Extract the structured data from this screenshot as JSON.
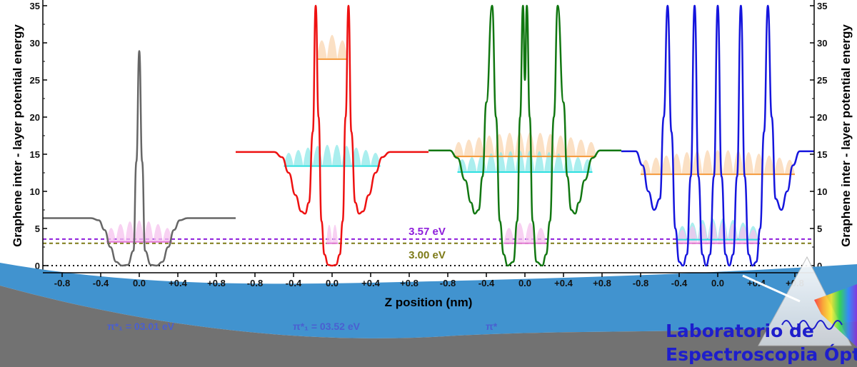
{
  "chart_data": {
    "type": "line",
    "ylabel": "Graphene inter - layer potential energy",
    "ylabel_right": "Graphene inter - layer potential energy",
    "xlabel": "Z position (nm)",
    "ylim": [
      0,
      35
    ],
    "yticks": [
      0,
      5,
      10,
      15,
      20,
      25,
      30,
      35
    ],
    "ytick_labels": [
      "0",
      "5",
      "10",
      "15",
      "20",
      "25",
      "30",
      "35"
    ],
    "grid": false,
    "panels": [
      {
        "name": "",
        "color": "#666666",
        "x_range": [
          -1.0,
          1.0
        ],
        "xticks": [
          -0.8,
          -0.4,
          0.0,
          0.4,
          0.8
        ],
        "xtick_labels": [
          "-0.8",
          "-0.4",
          "0.0",
          "+0.4",
          "+0.8"
        ],
        "curve": {
          "x": [
            -1.0,
            -0.5,
            -0.42,
            -0.36,
            -0.3,
            -0.24,
            -0.18,
            -0.12,
            -0.06,
            -0.03,
            0.0,
            0.03,
            0.06,
            0.12,
            0.18,
            0.24,
            0.3,
            0.36,
            0.42,
            0.5,
            1.0
          ],
          "y": [
            6.4,
            6.4,
            6.1,
            4.8,
            2.5,
            0.5,
            0.0,
            0.1,
            2.0,
            14.0,
            28.9,
            14.0,
            2.0,
            0.1,
            0.0,
            0.5,
            2.5,
            4.8,
            6.1,
            6.4,
            6.4
          ]
        },
        "levels": [
          {
            "energy": 3.2,
            "x_range": [
              -0.34,
              0.34
            ],
            "color": "#e37bd8",
            "fill": "#f5c2ee"
          }
        ]
      },
      {
        "name": "",
        "color": "#ee1111",
        "x_range": [
          -1.0,
          1.0
        ],
        "xticks": [
          -0.8,
          -0.4,
          0.0,
          0.4,
          0.8
        ],
        "xtick_labels": [
          "-0.8",
          "-0.4",
          "0.0",
          "+0.4",
          "+0.8"
        ],
        "curve": {
          "x": [
            -1.0,
            -0.6,
            -0.52,
            -0.45,
            -0.38,
            -0.32,
            -0.28,
            -0.24,
            -0.2,
            -0.17,
            -0.14,
            -0.11,
            -0.08,
            -0.04,
            0.0,
            0.04,
            0.08,
            0.11,
            0.14,
            0.17,
            0.2,
            0.24,
            0.28,
            0.32,
            0.38,
            0.45,
            0.52,
            0.6,
            1.0
          ],
          "y": [
            15.3,
            15.3,
            14.6,
            12.5,
            9.5,
            7.3,
            7.0,
            8.5,
            18.0,
            35.0,
            20.0,
            6.0,
            1.5,
            0.1,
            0.0,
            0.1,
            1.5,
            6.0,
            20.0,
            35.0,
            18.0,
            8.5,
            7.0,
            7.3,
            9.5,
            12.5,
            14.6,
            15.3,
            15.3
          ]
        },
        "levels": [
          {
            "energy": 27.8,
            "x_range": [
              -0.16,
              0.16
            ],
            "color": "#f59a3b",
            "fill": "#f9d6b0"
          },
          {
            "energy": 13.4,
            "x_range": [
              -0.5,
              0.5
            ],
            "color": "#2ee0e0",
            "fill": "#8de8e8"
          },
          {
            "energy": 3.0,
            "x_range": [
              -0.06,
              0.06
            ],
            "color": "#e37bd8",
            "fill": "#f5c2ee"
          }
        ]
      },
      {
        "name": "",
        "color": "#117711",
        "x_range": [
          -1.0,
          1.0
        ],
        "xticks": [
          -0.8,
          -0.4,
          0.0,
          0.4,
          0.8
        ],
        "xtick_labels": [
          "-0.8",
          "-0.4",
          "0.0",
          "+0.4",
          "+0.8"
        ],
        "curve": {
          "x": [
            -1.0,
            -0.78,
            -0.7,
            -0.62,
            -0.56,
            -0.52,
            -0.48,
            -0.44,
            -0.4,
            -0.34,
            -0.3,
            -0.26,
            -0.22,
            -0.18,
            -0.12,
            -0.08,
            -0.05,
            -0.02,
            0.0,
            0.02,
            0.05,
            0.08,
            0.12,
            0.18,
            0.22,
            0.26,
            0.3,
            0.34,
            0.4,
            0.44,
            0.48,
            0.52,
            0.56,
            0.62,
            0.7,
            0.78,
            1.0
          ],
          "y": [
            15.5,
            15.5,
            14.5,
            11.5,
            8.5,
            7.0,
            7.5,
            12.0,
            22.0,
            35.0,
            20.0,
            6.0,
            1.5,
            0.0,
            0.5,
            6.0,
            20.0,
            35.0,
            25.0,
            35.0,
            20.0,
            6.0,
            0.5,
            0.0,
            1.5,
            6.0,
            20.0,
            35.0,
            22.0,
            12.0,
            7.5,
            7.0,
            8.5,
            11.5,
            14.5,
            15.5,
            15.5
          ]
        },
        "levels": [
          {
            "energy": 14.7,
            "x_range": [
              -0.74,
              0.74
            ],
            "color": "#f59a3b",
            "fill": "#f9d6b0"
          },
          {
            "energy": 12.6,
            "x_range": [
              -0.7,
              0.7
            ],
            "color": "#2ee0e0",
            "fill": "#8de8e8"
          },
          {
            "energy": 3.0,
            "x_range": [
              -0.22,
              0.22
            ],
            "color": "#e37bd8",
            "fill": "#f5c2ee"
          }
        ]
      },
      {
        "name": "",
        "color": "#1515dd",
        "x_range": [
          -1.0,
          1.0
        ],
        "xticks": [
          -0.8,
          -0.4,
          0.0,
          0.4,
          0.8
        ],
        "xtick_labels": [
          "-0.8",
          "-0.4",
          "0.0",
          "+0.4",
          "+0.8"
        ],
        "curve": {
          "x": [
            -1.0,
            -0.85,
            -0.78,
            -0.72,
            -0.66,
            -0.6,
            -0.56,
            -0.52,
            -0.48,
            -0.44,
            -0.4,
            -0.36,
            -0.32,
            -0.28,
            -0.24,
            -0.2,
            -0.16,
            -0.12,
            -0.08,
            -0.04,
            0.0,
            0.04,
            0.08,
            0.12,
            0.16,
            0.2,
            0.24,
            0.28,
            0.32,
            0.36,
            0.4,
            0.44,
            0.48,
            0.52,
            0.56,
            0.6,
            0.66,
            0.72,
            0.78,
            0.85,
            1.0
          ],
          "y": [
            15.4,
            15.4,
            13.5,
            10.0,
            7.5,
            9.0,
            20.0,
            35.0,
            18.0,
            5.0,
            0.5,
            0.0,
            1.5,
            12.0,
            35.0,
            12.0,
            1.5,
            0.0,
            1.5,
            12.0,
            35.0,
            12.0,
            1.5,
            0.0,
            1.5,
            12.0,
            35.0,
            12.0,
            1.5,
            0.0,
            0.5,
            5.0,
            18.0,
            35.0,
            20.0,
            9.0,
            7.5,
            10.0,
            13.5,
            15.4,
            15.4
          ]
        },
        "levels": [
          {
            "energy": 12.3,
            "x_range": [
              -0.8,
              0.8
            ],
            "color": "#f59a3b",
            "fill": "#f9d6b0"
          },
          {
            "energy": 3.5,
            "x_range": [
              -0.42,
              0.42
            ],
            "color": "#2ee0e0",
            "fill": "#8de8e8"
          },
          {
            "energy": 3.0,
            "x_range": [
              -0.42,
              0.42
            ],
            "color": "#e37bd8",
            "fill": "#f5c2ee"
          }
        ]
      }
    ],
    "reference_lines": [
      {
        "value": 3.57,
        "label": "3.57 eV",
        "color": "#8e1ddb",
        "style": "dashed"
      },
      {
        "value": 3.0,
        "label": "3.00 eV",
        "color": "#7d7a17",
        "style": "dashed"
      },
      {
        "value": 0.0,
        "label": "",
        "color": "#000000",
        "style": "dotted"
      }
    ],
    "annotations": [
      {
        "text": "π*₁ = 03.01 eV",
        "color": "#4a5fd0"
      },
      {
        "text": "π*₁ = 03.52 eV",
        "color": "#4a5fd0"
      },
      {
        "text": "π*",
        "color": "#4a5fd0"
      }
    ]
  },
  "logo": {
    "line1": "Laboratorio de",
    "line2": "Espectroscopia Óptica",
    "color": "#1e1ecc"
  },
  "background": {
    "band_color": "#4193cf",
    "ground_color": "#727272"
  }
}
